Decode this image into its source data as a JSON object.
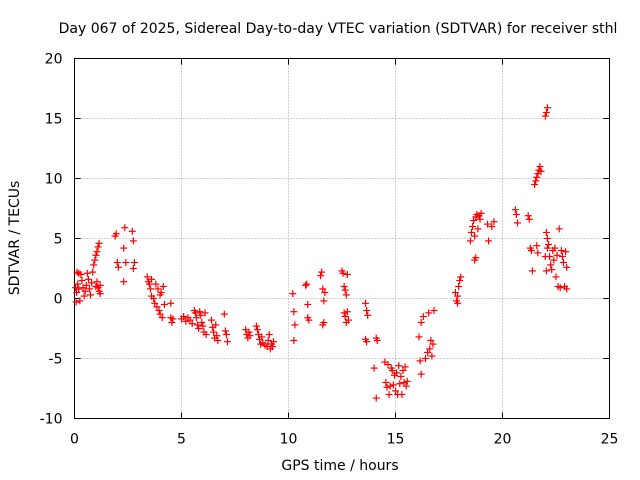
{
  "chart_data": {
    "type": "scatter",
    "title": "Day 067 of 2025, Sidereal Day-to-day VTEC variation (SDTVAR) for receiver sthl",
    "xlabel": "GPS time / hours",
    "ylabel": "SDTVAR / TECUs",
    "xlim": [
      0,
      25
    ],
    "ylim": [
      -10,
      20
    ],
    "xticks": [
      0,
      5,
      10,
      15,
      20,
      25
    ],
    "yticks": [
      -10,
      -5,
      0,
      5,
      10,
      15,
      20
    ],
    "x_tick_labels": [
      "0",
      "5",
      "10",
      "15",
      "20",
      "25"
    ],
    "y_tick_labels": [
      "-10",
      "-5",
      "0",
      "5",
      "10",
      "15",
      "20"
    ],
    "grid": true,
    "marker": "+",
    "series_color": "#ff0000",
    "series": [
      {
        "name": "SDTVAR",
        "points": [
          [
            0.05,
            0.9
          ],
          [
            0.1,
            0.5
          ],
          [
            0.15,
            1.2
          ],
          [
            0.2,
            0.8
          ],
          [
            0.25,
            -0.2
          ],
          [
            0.08,
            -0.3
          ],
          [
            0.12,
            2.2
          ],
          [
            0.2,
            2.1
          ],
          [
            0.3,
            2.0
          ],
          [
            0.35,
            1.5
          ],
          [
            0.4,
            0.9
          ],
          [
            0.45,
            0.2
          ],
          [
            0.5,
            0.6
          ],
          [
            0.55,
            1.1
          ],
          [
            0.6,
            2.1
          ],
          [
            0.65,
            1.6
          ],
          [
            0.7,
            0.8
          ],
          [
            0.75,
            0.3
          ],
          [
            0.8,
            1.3
          ],
          [
            0.85,
            2.2
          ],
          [
            0.9,
            2.8
          ],
          [
            0.95,
            3.2
          ],
          [
            1.0,
            3.6
          ],
          [
            1.05,
            3.9
          ],
          [
            1.1,
            4.3
          ],
          [
            1.15,
            4.6
          ],
          [
            1.0,
            1.0
          ],
          [
            1.05,
            1.4
          ],
          [
            1.1,
            0.9
          ],
          [
            1.15,
            0.6
          ],
          [
            1.2,
            0.4
          ],
          [
            1.2,
            1.1
          ],
          [
            1.9,
            5.2
          ],
          [
            1.95,
            5.4
          ],
          [
            2.0,
            3.0
          ],
          [
            2.05,
            2.6
          ],
          [
            2.3,
            4.2
          ],
          [
            2.35,
            5.9
          ],
          [
            2.3,
            1.4
          ],
          [
            2.4,
            3.0
          ],
          [
            2.7,
            5.6
          ],
          [
            2.75,
            4.8
          ],
          [
            2.8,
            3.0
          ],
          [
            2.75,
            2.5
          ],
          [
            3.4,
            1.8
          ],
          [
            3.45,
            1.4
          ],
          [
            3.5,
            1.2
          ],
          [
            3.55,
            0.8
          ],
          [
            3.6,
            0.2
          ],
          [
            3.6,
            1.6
          ],
          [
            3.7,
            0.0
          ],
          [
            3.75,
            -0.4
          ],
          [
            3.8,
            1.2
          ],
          [
            3.85,
            -0.7
          ],
          [
            3.9,
            0.8
          ],
          [
            3.95,
            -1.0
          ],
          [
            4.0,
            -1.3
          ],
          [
            4.05,
            0.5
          ],
          [
            4.1,
            -1.6
          ],
          [
            4.15,
            1.0
          ],
          [
            4.2,
            -0.5
          ],
          [
            4.0,
            0.3
          ],
          [
            4.5,
            -0.4
          ],
          [
            4.5,
            -1.6
          ],
          [
            4.55,
            -2.0
          ],
          [
            4.6,
            -1.7
          ],
          [
            5.0,
            -1.7
          ],
          [
            5.1,
            -1.5
          ],
          [
            5.2,
            -1.9
          ],
          [
            5.3,
            -1.6
          ],
          [
            5.4,
            -1.8
          ],
          [
            5.5,
            -2.1
          ],
          [
            5.6,
            -1.0
          ],
          [
            5.65,
            -1.2
          ],
          [
            5.7,
            -1.6
          ],
          [
            5.75,
            -2.2
          ],
          [
            5.8,
            -2.5
          ],
          [
            5.85,
            -1.1
          ],
          [
            5.9,
            -1.4
          ],
          [
            5.95,
            -2.0
          ],
          [
            6.0,
            -2.3
          ],
          [
            6.05,
            -2.8
          ],
          [
            6.1,
            -1.2
          ],
          [
            6.15,
            -3.0
          ],
          [
            6.4,
            -1.8
          ],
          [
            6.45,
            -2.4
          ],
          [
            6.5,
            -2.8
          ],
          [
            6.55,
            -3.3
          ],
          [
            6.6,
            -2.2
          ],
          [
            6.65,
            -3.1
          ],
          [
            6.7,
            -3.5
          ],
          [
            7.0,
            -1.3
          ],
          [
            7.05,
            -2.7
          ],
          [
            7.1,
            -3.0
          ],
          [
            7.15,
            -3.6
          ],
          [
            8.0,
            -2.6
          ],
          [
            8.05,
            -3.0
          ],
          [
            8.1,
            -3.3
          ],
          [
            8.15,
            -2.8
          ],
          [
            8.2,
            -3.1
          ],
          [
            8.5,
            -2.3
          ],
          [
            8.55,
            -2.6
          ],
          [
            8.6,
            -3.0
          ],
          [
            8.65,
            -3.4
          ],
          [
            8.7,
            -3.8
          ],
          [
            8.75,
            -3.2
          ],
          [
            8.8,
            -3.7
          ],
          [
            8.9,
            -3.9
          ],
          [
            9.0,
            -4.0
          ],
          [
            9.05,
            -3.5
          ],
          [
            9.1,
            -3.0
          ],
          [
            9.15,
            -4.2
          ],
          [
            9.2,
            -3.8
          ],
          [
            9.25,
            -4.0
          ],
          [
            9.3,
            -3.6
          ],
          [
            10.2,
            0.4
          ],
          [
            10.25,
            -1.1
          ],
          [
            10.3,
            -2.2
          ],
          [
            10.25,
            -3.5
          ],
          [
            10.8,
            1.1
          ],
          [
            10.85,
            1.2
          ],
          [
            10.9,
            -0.5
          ],
          [
            10.9,
            -1.6
          ],
          [
            10.95,
            -1.8
          ],
          [
            11.5,
            1.9
          ],
          [
            11.55,
            2.2
          ],
          [
            11.6,
            0.8
          ],
          [
            11.65,
            -0.2
          ],
          [
            11.7,
            0.5
          ],
          [
            11.6,
            -2.2
          ],
          [
            11.65,
            -2.0
          ],
          [
            12.5,
            2.3
          ],
          [
            12.55,
            2.1
          ],
          [
            12.6,
            1.0
          ],
          [
            12.65,
            0.7
          ],
          [
            12.7,
            0.3
          ],
          [
            12.75,
            2.0
          ],
          [
            12.6,
            -1.2
          ],
          [
            12.65,
            -1.5
          ],
          [
            12.7,
            -2.0
          ],
          [
            12.75,
            -1.1
          ],
          [
            12.8,
            -1.8
          ],
          [
            13.6,
            -0.4
          ],
          [
            13.65,
            -1.0
          ],
          [
            13.7,
            -1.4
          ],
          [
            13.6,
            -3.4
          ],
          [
            13.65,
            -3.6
          ],
          [
            14.1,
            -3.3
          ],
          [
            14.15,
            -3.5
          ],
          [
            14.0,
            -5.8
          ],
          [
            14.1,
            -8.3
          ],
          [
            14.5,
            -5.3
          ],
          [
            14.55,
            -7.0
          ],
          [
            14.6,
            -7.4
          ],
          [
            14.65,
            -5.5
          ],
          [
            14.7,
            -8.0
          ],
          [
            14.75,
            -7.3
          ],
          [
            14.8,
            -5.8
          ],
          [
            14.85,
            -6.0
          ],
          [
            14.9,
            -7.2
          ],
          [
            14.95,
            -6.4
          ],
          [
            15.0,
            -7.7
          ],
          [
            15.05,
            -6.2
          ],
          [
            15.1,
            -8.0
          ],
          [
            15.15,
            -5.6
          ],
          [
            15.2,
            -7.1
          ],
          [
            15.25,
            -6.5
          ],
          [
            15.3,
            -8.0
          ],
          [
            15.35,
            -6.0
          ],
          [
            15.4,
            -7.0
          ],
          [
            15.45,
            -5.7
          ],
          [
            15.5,
            -7.3
          ],
          [
            15.55,
            -6.9
          ],
          [
            16.1,
            -3.2
          ],
          [
            16.2,
            -2.0
          ],
          [
            16.3,
            -1.5
          ],
          [
            16.15,
            -5.2
          ],
          [
            16.2,
            -6.3
          ],
          [
            16.4,
            -5.0
          ],
          [
            16.5,
            -4.5
          ],
          [
            16.55,
            -1.2
          ],
          [
            16.6,
            -4.2
          ],
          [
            16.65,
            -3.5
          ],
          [
            16.7,
            -4.8
          ],
          [
            16.75,
            -3.8
          ],
          [
            16.8,
            -1.0
          ],
          [
            17.8,
            0.5
          ],
          [
            17.85,
            -0.2
          ],
          [
            17.9,
            0.2
          ],
          [
            17.95,
            1.0
          ],
          [
            18.0,
            1.5
          ],
          [
            18.05,
            1.8
          ],
          [
            17.9,
            -0.4
          ],
          [
            18.5,
            4.8
          ],
          [
            18.55,
            5.5
          ],
          [
            18.6,
            6.0
          ],
          [
            18.65,
            6.5
          ],
          [
            18.7,
            5.2
          ],
          [
            18.75,
            6.8
          ],
          [
            18.8,
            7.0
          ],
          [
            18.85,
            5.8
          ],
          [
            18.9,
            6.9
          ],
          [
            18.95,
            6.6
          ],
          [
            19.0,
            7.1
          ],
          [
            18.7,
            3.2
          ],
          [
            18.75,
            3.4
          ],
          [
            19.3,
            6.2
          ],
          [
            19.35,
            4.8
          ],
          [
            19.6,
            6.4
          ],
          [
            19.5,
            6.0
          ],
          [
            20.6,
            7.4
          ],
          [
            20.65,
            7.0
          ],
          [
            20.7,
            6.3
          ],
          [
            21.2,
            6.9
          ],
          [
            21.25,
            6.6
          ],
          [
            21.3,
            4.2
          ],
          [
            21.35,
            4.0
          ],
          [
            21.4,
            2.3
          ],
          [
            21.5,
            9.5
          ],
          [
            21.55,
            9.8
          ],
          [
            21.6,
            10.1
          ],
          [
            21.65,
            10.4
          ],
          [
            21.7,
            10.7
          ],
          [
            21.75,
            11.0
          ],
          [
            21.8,
            10.6
          ],
          [
            21.6,
            4.4
          ],
          [
            21.65,
            3.8
          ],
          [
            22.0,
            15.2
          ],
          [
            22.05,
            15.5
          ],
          [
            22.1,
            15.9
          ],
          [
            22.05,
            5.5
          ],
          [
            22.1,
            5.0
          ],
          [
            22.15,
            4.5
          ],
          [
            22.2,
            3.5
          ],
          [
            22.25,
            2.8
          ],
          [
            22.3,
            2.4
          ],
          [
            22.35,
            4.0
          ],
          [
            22.4,
            3.2
          ],
          [
            22.45,
            4.2
          ],
          [
            22.5,
            1.8
          ],
          [
            22.55,
            3.6
          ],
          [
            22.6,
            1.0
          ],
          [
            22.65,
            5.8
          ],
          [
            22.7,
            0.9
          ],
          [
            22.75,
            4.0
          ],
          [
            22.8,
            3.5
          ],
          [
            22.85,
            3.0
          ],
          [
            22.9,
            1.0
          ],
          [
            22.95,
            3.9
          ],
          [
            23.0,
            2.6
          ],
          [
            23.0,
            0.8
          ],
          [
            22.0,
            3.5
          ],
          [
            22.05,
            2.3
          ],
          [
            22.1,
            4.2
          ]
        ]
      }
    ]
  }
}
